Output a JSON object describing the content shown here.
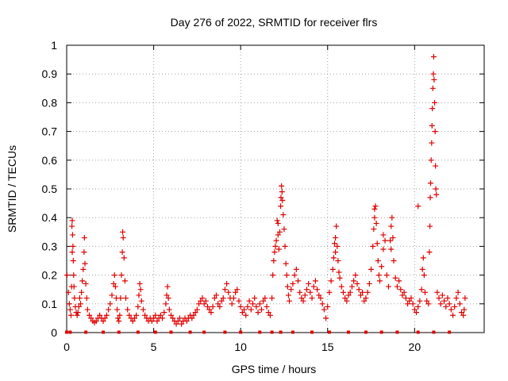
{
  "colors": {
    "series": "#e00000",
    "axis": "#000000",
    "grid": "#a0a0a0",
    "background": "#ffffff"
  },
  "chart_data": {
    "type": "scatter",
    "title": "Day 276 of 2022, SRMTID for receiver flrs",
    "xlabel": "GPS time / hours",
    "ylabel": "SRMTID / TECUs",
    "xlim": [
      0,
      24
    ],
    "ylim": [
      0,
      1
    ],
    "grid": true,
    "marker": "+",
    "x_ticks": [
      0,
      5,
      10,
      15,
      20
    ],
    "x_tick_labels": [
      "0",
      "5",
      "10",
      "15",
      "20"
    ],
    "y_ticks": [
      0,
      0.1,
      0.2,
      0.3,
      0.4,
      0.5,
      0.6,
      0.7,
      0.8,
      0.9,
      1
    ],
    "y_tick_labels": [
      "0",
      "0.1",
      "0.2",
      "0.3",
      "0.4",
      "0.5",
      "0.6",
      "0.7",
      "0.8",
      "0.9",
      "1"
    ],
    "series": [
      {
        "name": "SRMTID",
        "points": [
          [
            0.02,
            0.2
          ],
          [
            0.1,
            0.14
          ],
          [
            0.15,
            0.1
          ],
          [
            0.2,
            0.08
          ],
          [
            0.25,
            0.06
          ],
          [
            0.3,
            0.37
          ],
          [
            0.32,
            0.39
          ],
          [
            0.34,
            0.34
          ],
          [
            0.36,
            0.3
          ],
          [
            0.38,
            0.25
          ],
          [
            0.4,
            0.2
          ],
          [
            0.42,
            0.16
          ],
          [
            0.45,
            0.12
          ],
          [
            0.5,
            0.09
          ],
          [
            0.55,
            0.07
          ],
          [
            0.6,
            0.06
          ],
          [
            0.65,
            0.07
          ],
          [
            0.7,
            0.09
          ],
          [
            0.75,
            0.12
          ],
          [
            0.8,
            0.1
          ],
          [
            0.85,
            0.14
          ],
          [
            0.9,
            0.18
          ],
          [
            0.95,
            0.22
          ],
          [
            1.0,
            0.28
          ],
          [
            1.02,
            0.33
          ],
          [
            1.05,
            0.24
          ],
          [
            1.1,
            0.17
          ],
          [
            1.15,
            0.12
          ],
          [
            1.2,
            0.08
          ],
          [
            1.3,
            0.06
          ],
          [
            1.4,
            0.05
          ],
          [
            1.5,
            0.04
          ],
          [
            1.6,
            0.035
          ],
          [
            1.7,
            0.04
          ],
          [
            1.8,
            0.05
          ],
          [
            1.9,
            0.06
          ],
          [
            2.0,
            0.05
          ],
          [
            2.1,
            0.04
          ],
          [
            2.2,
            0.05
          ],
          [
            2.3,
            0.06
          ],
          [
            2.4,
            0.08
          ],
          [
            2.5,
            0.1
          ],
          [
            2.6,
            0.13
          ],
          [
            2.7,
            0.17
          ],
          [
            2.75,
            0.2
          ],
          [
            2.8,
            0.16
          ],
          [
            2.85,
            0.12
          ],
          [
            2.9,
            0.08
          ],
          [
            2.95,
            0.05
          ],
          [
            3.0,
            0.04
          ],
          [
            3.05,
            0.06
          ],
          [
            3.1,
            0.12
          ],
          [
            3.15,
            0.2
          ],
          [
            3.2,
            0.28
          ],
          [
            3.22,
            0.35
          ],
          [
            3.25,
            0.33
          ],
          [
            3.3,
            0.26
          ],
          [
            3.35,
            0.18
          ],
          [
            3.4,
            0.12
          ],
          [
            3.5,
            0.08
          ],
          [
            3.6,
            0.06
          ],
          [
            3.7,
            0.05
          ],
          [
            3.8,
            0.04
          ],
          [
            3.9,
            0.05
          ],
          [
            4.0,
            0.06
          ],
          [
            4.1,
            0.09
          ],
          [
            4.15,
            0.13
          ],
          [
            4.2,
            0.17
          ],
          [
            4.25,
            0.15
          ],
          [
            4.3,
            0.11
          ],
          [
            4.4,
            0.08
          ],
          [
            4.5,
            0.06
          ],
          [
            4.6,
            0.05
          ],
          [
            4.7,
            0.04
          ],
          [
            4.8,
            0.05
          ],
          [
            4.9,
            0.04
          ],
          [
            5.0,
            0.05
          ],
          [
            5.1,
            0.06
          ],
          [
            5.2,
            0.04
          ],
          [
            5.3,
            0.05
          ],
          [
            5.4,
            0.06
          ],
          [
            5.5,
            0.05
          ],
          [
            5.6,
            0.07
          ],
          [
            5.7,
            0.1
          ],
          [
            5.75,
            0.13
          ],
          [
            5.8,
            0.16
          ],
          [
            5.85,
            0.12
          ],
          [
            5.9,
            0.08
          ],
          [
            6.0,
            0.06
          ],
          [
            6.1,
            0.05
          ],
          [
            6.2,
            0.04
          ],
          [
            6.3,
            0.03
          ],
          [
            6.4,
            0.04
          ],
          [
            6.5,
            0.05
          ],
          [
            6.6,
            0.03
          ],
          [
            6.7,
            0.04
          ],
          [
            6.8,
            0.05
          ],
          [
            6.9,
            0.04
          ],
          [
            7.0,
            0.05
          ],
          [
            7.1,
            0.06
          ],
          [
            7.2,
            0.05
          ],
          [
            7.3,
            0.06
          ],
          [
            7.4,
            0.07
          ],
          [
            7.5,
            0.08
          ],
          [
            7.6,
            0.1
          ],
          [
            7.7,
            0.11
          ],
          [
            7.8,
            0.12
          ],
          [
            7.9,
            0.1
          ],
          [
            8.0,
            0.11
          ],
          [
            8.1,
            0.09
          ],
          [
            8.2,
            0.08
          ],
          [
            8.3,
            0.07
          ],
          [
            8.4,
            0.09
          ],
          [
            8.5,
            0.12
          ],
          [
            8.6,
            0.13
          ],
          [
            8.7,
            0.1
          ],
          [
            8.8,
            0.09
          ],
          [
            8.9,
            0.11
          ],
          [
            9.0,
            0.12
          ],
          [
            9.1,
            0.15
          ],
          [
            9.2,
            0.17
          ],
          [
            9.3,
            0.14
          ],
          [
            9.4,
            0.12
          ],
          [
            9.5,
            0.1
          ],
          [
            9.6,
            0.12
          ],
          [
            9.7,
            0.14
          ],
          [
            9.8,
            0.15
          ],
          [
            9.9,
            0.11
          ],
          [
            10.0,
            0.09
          ],
          [
            10.1,
            0.07
          ],
          [
            10.2,
            0.08
          ],
          [
            10.3,
            0.06
          ],
          [
            10.4,
            0.09
          ],
          [
            10.5,
            0.11
          ],
          [
            10.6,
            0.08
          ],
          [
            10.7,
            0.1
          ],
          [
            10.8,
            0.12
          ],
          [
            10.9,
            0.09
          ],
          [
            11.0,
            0.07
          ],
          [
            11.1,
            0.1
          ],
          [
            11.2,
            0.08
          ],
          [
            11.3,
            0.11
          ],
          [
            11.4,
            0.12
          ],
          [
            11.5,
            0.09
          ],
          [
            11.6,
            0.07
          ],
          [
            11.7,
            0.06
          ],
          [
            11.8,
            0.12
          ],
          [
            11.85,
            0.2
          ],
          [
            11.9,
            0.25
          ],
          [
            11.95,
            0.28
          ],
          [
            12.0,
            0.3
          ],
          [
            12.05,
            0.32
          ],
          [
            12.1,
            0.39
          ],
          [
            12.15,
            0.34
          ],
          [
            12.2,
            0.29
          ],
          [
            12.25,
            0.35
          ],
          [
            12.3,
            0.44
          ],
          [
            12.32,
            0.47
          ],
          [
            12.35,
            0.51
          ],
          [
            12.38,
            0.49
          ],
          [
            12.4,
            0.46
          ],
          [
            12.45,
            0.41
          ],
          [
            12.5,
            0.36
          ],
          [
            12.55,
            0.3
          ],
          [
            12.6,
            0.24
          ],
          [
            12.65,
            0.2
          ],
          [
            12.7,
            0.16
          ],
          [
            12.75,
            0.13
          ],
          [
            12.8,
            0.11
          ],
          [
            12.9,
            0.15
          ],
          [
            13.0,
            0.17
          ],
          [
            13.1,
            0.2
          ],
          [
            13.2,
            0.22
          ],
          [
            13.3,
            0.18
          ],
          [
            13.4,
            0.14
          ],
          [
            13.5,
            0.12
          ],
          [
            13.6,
            0.11
          ],
          [
            13.7,
            0.13
          ],
          [
            13.8,
            0.15
          ],
          [
            13.9,
            0.17
          ],
          [
            14.0,
            0.14
          ],
          [
            14.1,
            0.12
          ],
          [
            14.2,
            0.16
          ],
          [
            14.3,
            0.18
          ],
          [
            14.4,
            0.15
          ],
          [
            14.5,
            0.13
          ],
          [
            14.6,
            0.12
          ],
          [
            14.7,
            0.1
          ],
          [
            14.8,
            0.08
          ],
          [
            14.9,
            0.05
          ],
          [
            15.0,
            0.09
          ],
          [
            15.1,
            0.14
          ],
          [
            15.2,
            0.18
          ],
          [
            15.3,
            0.22
          ],
          [
            15.35,
            0.26
          ],
          [
            15.4,
            0.31
          ],
          [
            15.45,
            0.33
          ],
          [
            15.5,
            0.37
          ],
          [
            15.55,
            0.3
          ],
          [
            15.6,
            0.25
          ],
          [
            15.65,
            0.21
          ],
          [
            15.7,
            0.19
          ],
          [
            15.8,
            0.16
          ],
          [
            15.9,
            0.14
          ],
          [
            16.0,
            0.12
          ],
          [
            16.1,
            0.11
          ],
          [
            16.2,
            0.13
          ],
          [
            16.3,
            0.14
          ],
          [
            16.4,
            0.16
          ],
          [
            16.5,
            0.18
          ],
          [
            16.6,
            0.2
          ],
          [
            16.7,
            0.17
          ],
          [
            16.8,
            0.15
          ],
          [
            16.9,
            0.13
          ],
          [
            17.0,
            0.14
          ],
          [
            17.1,
            0.11
          ],
          [
            17.2,
            0.12
          ],
          [
            17.3,
            0.14
          ],
          [
            17.4,
            0.17
          ],
          [
            17.5,
            0.22
          ],
          [
            17.6,
            0.3
          ],
          [
            17.65,
            0.36
          ],
          [
            17.7,
            0.4
          ],
          [
            17.75,
            0.44
          ],
          [
            17.8,
            0.38
          ],
          [
            17.85,
            0.31
          ],
          [
            17.9,
            0.25
          ],
          [
            17.95,
            0.2
          ],
          [
            18.0,
            0.18
          ],
          [
            18.1,
            0.23
          ],
          [
            18.2,
            0.29
          ],
          [
            18.3,
            0.32
          ],
          [
            18.4,
            0.2
          ],
          [
            18.5,
            0.16
          ],
          [
            18.6,
            0.32
          ],
          [
            18.65,
            0.37
          ],
          [
            18.7,
            0.4
          ],
          [
            18.75,
            0.33
          ],
          [
            18.8,
            0.25
          ],
          [
            18.9,
            0.19
          ],
          [
            19.0,
            0.16
          ],
          [
            19.1,
            0.18
          ],
          [
            19.2,
            0.15
          ],
          [
            19.3,
            0.13
          ],
          [
            19.4,
            0.14
          ],
          [
            19.5,
            0.12
          ],
          [
            19.6,
            0.1
          ],
          [
            19.7,
            0.11
          ],
          [
            19.8,
            0.12
          ],
          [
            19.9,
            0.1
          ],
          [
            20.0,
            0.08
          ],
          [
            20.1,
            0.07
          ],
          [
            20.2,
            0.09
          ],
          [
            20.3,
            0.11
          ],
          [
            20.4,
            0.15
          ],
          [
            20.45,
            0.22
          ],
          [
            20.5,
            0.26
          ],
          [
            20.55,
            0.2
          ],
          [
            20.6,
            0.14
          ],
          [
            20.7,
            0.11
          ],
          [
            20.8,
            0.1
          ],
          [
            20.85,
            0.28
          ],
          [
            20.88,
            0.37
          ],
          [
            20.9,
            0.47
          ],
          [
            20.92,
            0.52
          ],
          [
            20.95,
            0.6
          ],
          [
            20.98,
            0.66
          ],
          [
            21.0,
            0.72
          ],
          [
            21.02,
            0.78
          ],
          [
            21.05,
            0.85
          ],
          [
            21.08,
            0.9
          ],
          [
            21.1,
            0.96
          ],
          [
            21.12,
            0.88
          ],
          [
            21.15,
            0.8
          ],
          [
            21.18,
            0.7
          ],
          [
            21.2,
            0.58
          ],
          [
            21.22,
            0.5
          ],
          [
            21.25,
            0.48
          ],
          [
            21.3,
            0.14
          ],
          [
            21.4,
            0.12
          ],
          [
            21.5,
            0.1
          ],
          [
            21.6,
            0.13
          ],
          [
            21.7,
            0.11
          ],
          [
            21.8,
            0.09
          ],
          [
            21.9,
            0.12
          ],
          [
            22.0,
            0.1
          ],
          [
            22.1,
            0.08
          ],
          [
            22.2,
            0.06
          ],
          [
            22.3,
            0.09
          ],
          [
            22.4,
            0.12
          ],
          [
            22.5,
            0.14
          ],
          [
            22.6,
            0.1
          ],
          [
            22.7,
            0.07
          ],
          [
            22.8,
            0.06
          ],
          [
            22.85,
            0.08
          ],
          [
            22.9,
            0.12
          ],
          [
            20.2,
            0.44
          ],
          [
            0.28,
            0.16
          ],
          [
            0.32,
            0.28
          ],
          [
            12.15,
            0.38
          ],
          [
            15.45,
            0.28
          ],
          [
            17.7,
            0.43
          ],
          [
            18.2,
            0.34
          ],
          [
            18.65,
            0.29
          ]
        ]
      }
    ],
    "baseline_markers_x": [
      0.0,
      0.2,
      1.1,
      2.1,
      3.0,
      4.1,
      5.1,
      6.0,
      7.1,
      7.9,
      9.1,
      10.0,
      11.1,
      11.8,
      12.3,
      13.0,
      14.1,
      15.1,
      16.2,
      17.2,
      18.1,
      19.0,
      20.2,
      21.1,
      22.0
    ]
  }
}
